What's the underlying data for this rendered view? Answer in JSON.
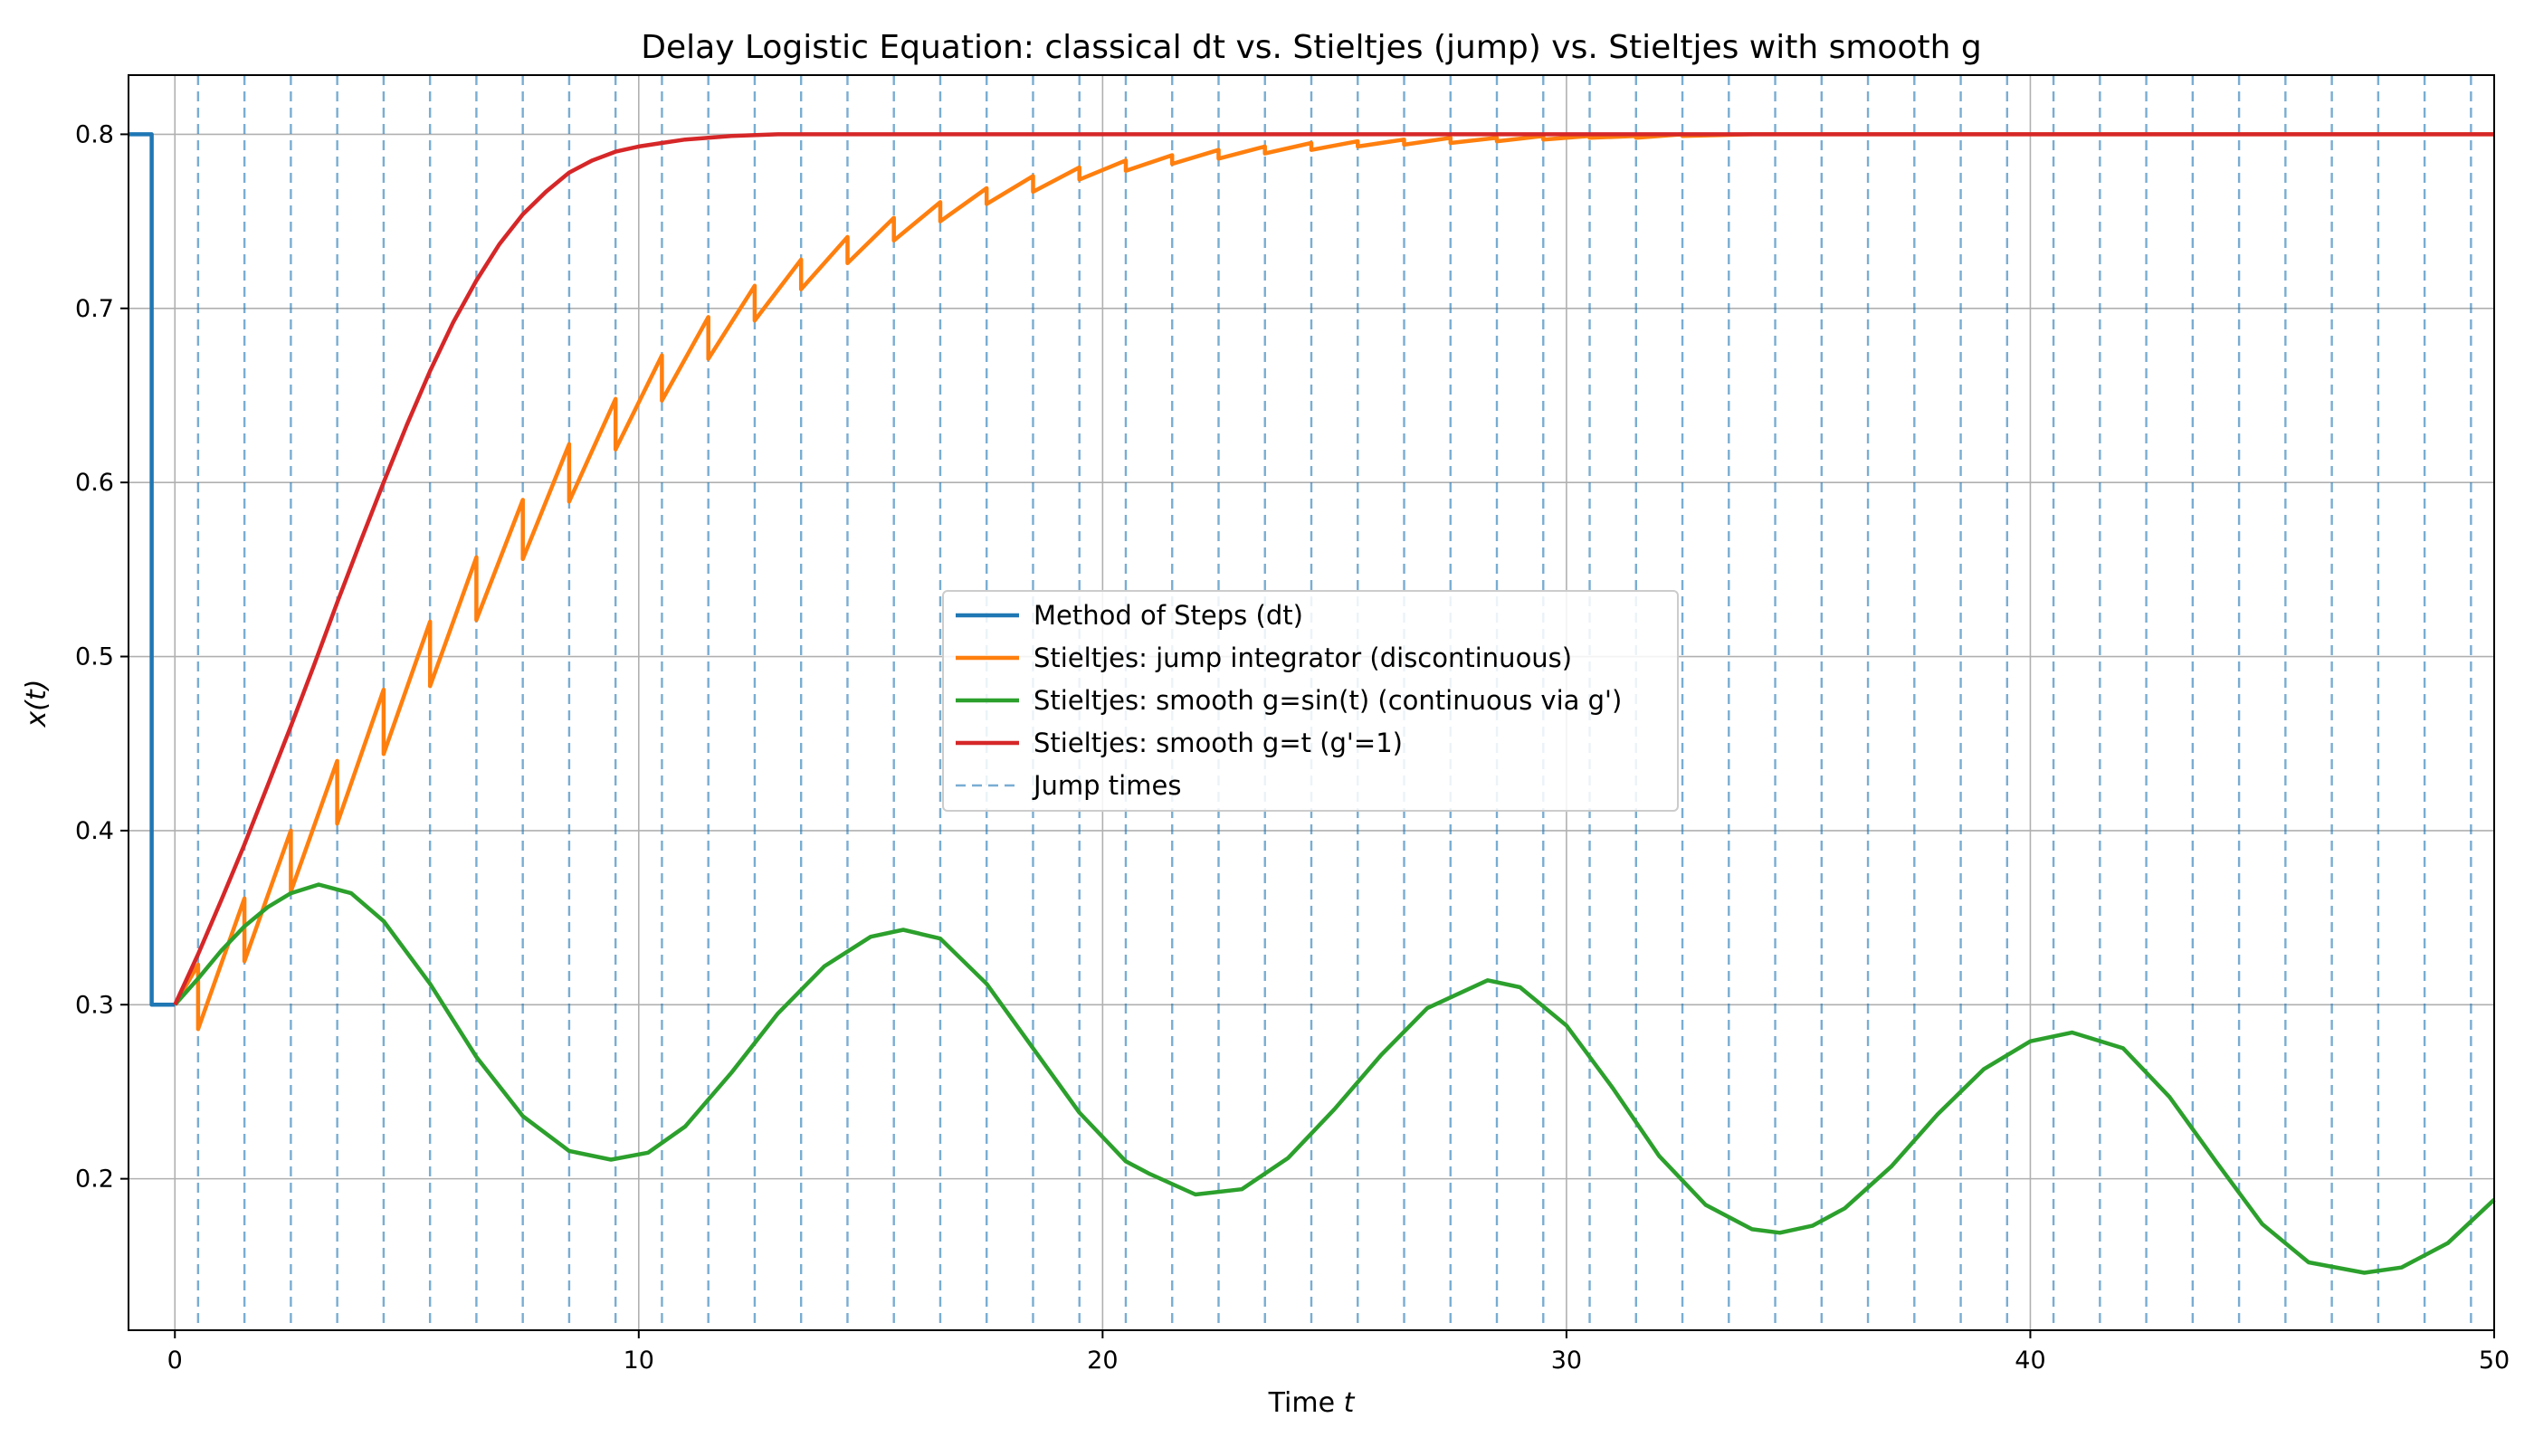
{
  "chart_data": {
    "type": "line",
    "title": "Delay Logistic Equation: classical dt vs. Stieltjes (jump) vs. Stieltjes with smooth g",
    "xlabel_text": "Time ",
    "xlabel_var": "t",
    "ylabel": "x(t)",
    "xlim": [
      -1,
      50
    ],
    "ylim": [
      0.113,
      0.834
    ],
    "grid": true,
    "legend_position": "center",
    "x_ticks": [
      0,
      10,
      20,
      30,
      40,
      50
    ],
    "x_tick_labels": [
      "0",
      "10",
      "20",
      "30",
      "40",
      "50"
    ],
    "y_ticks": [
      0.2,
      0.3,
      0.4,
      0.5,
      0.6,
      0.7,
      0.8
    ],
    "y_tick_labels": [
      "0.2",
      "0.3",
      "0.4",
      "0.5",
      "0.6",
      "0.7",
      "0.8"
    ],
    "jump_times": [
      0.5,
      1.5,
      2.5,
      3.5,
      4.5,
      5.5,
      6.5,
      7.5,
      8.5,
      9.5,
      10.5,
      11.5,
      12.5,
      13.5,
      14.5,
      15.5,
      16.5,
      17.5,
      18.5,
      19.5,
      20.5,
      21.5,
      22.5,
      23.5,
      24.5,
      25.5,
      26.5,
      27.5,
      28.5,
      29.5,
      30.5,
      31.5,
      32.5,
      33.5,
      34.5,
      35.5,
      36.5,
      37.5,
      38.5,
      39.5,
      40.5,
      41.5,
      42.5,
      43.5,
      44.5,
      45.5,
      46.5,
      47.5,
      48.5,
      49.5
    ],
    "series": [
      {
        "name": "Method of Steps (dt)",
        "color": "#1f77b4",
        "x": [
          -1.0,
          -0.5,
          -0.5,
          0.0
        ],
        "y": [
          0.8,
          0.8,
          0.3,
          0.3
        ]
      },
      {
        "name": "Stieltjes: jump integrator (discontinuous)",
        "color": "#ff7f0e",
        "x": [
          0.0,
          0.5,
          0.5,
          1.5,
          1.5,
          2.5,
          2.5,
          3.5,
          3.5,
          4.5,
          4.5,
          5.5,
          5.5,
          6.5,
          6.5,
          7.5,
          7.5,
          8.5,
          8.5,
          9.5,
          9.5,
          10.5,
          10.5,
          11.5,
          11.5,
          12.5,
          12.5,
          13.5,
          13.5,
          14.5,
          14.5,
          15.5,
          15.5,
          16.5,
          16.5,
          17.5,
          17.5,
          18.5,
          18.5,
          19.5,
          19.5,
          20.5,
          20.5,
          21.5,
          21.5,
          22.5,
          22.5,
          23.5,
          23.5,
          24.5,
          24.5,
          25.5,
          25.5,
          26.5,
          26.5,
          27.5,
          27.5,
          28.5,
          28.5,
          29.5,
          29.5,
          30.5,
          30.5,
          31.5,
          31.5,
          32.5,
          32.5,
          34.0,
          36.0,
          38.0,
          41.0,
          45.0,
          50.0
        ],
        "y": [
          0.3,
          0.323,
          0.286,
          0.361,
          0.325,
          0.4,
          0.365,
          0.44,
          0.404,
          0.481,
          0.444,
          0.52,
          0.483,
          0.557,
          0.521,
          0.59,
          0.556,
          0.622,
          0.589,
          0.648,
          0.619,
          0.673,
          0.647,
          0.695,
          0.671,
          0.713,
          0.693,
          0.728,
          0.711,
          0.741,
          0.726,
          0.752,
          0.739,
          0.761,
          0.75,
          0.769,
          0.76,
          0.776,
          0.767,
          0.781,
          0.774,
          0.785,
          0.779,
          0.788,
          0.783,
          0.791,
          0.786,
          0.793,
          0.789,
          0.795,
          0.791,
          0.796,
          0.793,
          0.797,
          0.794,
          0.798,
          0.795,
          0.798,
          0.796,
          0.799,
          0.797,
          0.799,
          0.798,
          0.799,
          0.798,
          0.8,
          0.799,
          0.8,
          0.8,
          0.8,
          0.8,
          0.8,
          0.8
        ]
      },
      {
        "name": "Stieltjes: smooth g=sin(t) (continuous via g')",
        "color": "#2ca02c",
        "x": [
          0.0,
          0.5,
          1.0,
          1.5,
          2.0,
          2.5,
          3.1,
          3.8,
          4.5,
          5.5,
          6.5,
          7.5,
          8.5,
          9.4,
          10.2,
          11.0,
          12.0,
          13.0,
          14.0,
          15.0,
          15.7,
          16.5,
          17.5,
          18.5,
          19.5,
          20.5,
          21.0,
          22.0,
          23.0,
          24.0,
          25.0,
          26.0,
          27.0,
          28.3,
          29.0,
          30.0,
          31.0,
          32.0,
          33.0,
          34.0,
          34.6,
          35.3,
          36.0,
          37.0,
          38.0,
          39.0,
          40.0,
          40.9,
          42.0,
          43.0,
          44.0,
          45.0,
          46.0,
          47.2,
          48.0,
          49.0,
          50.0
        ],
        "y": [
          0.3,
          0.315,
          0.331,
          0.345,
          0.356,
          0.364,
          0.369,
          0.364,
          0.348,
          0.312,
          0.27,
          0.236,
          0.216,
          0.211,
          0.215,
          0.23,
          0.261,
          0.295,
          0.322,
          0.339,
          0.343,
          0.338,
          0.312,
          0.275,
          0.238,
          0.21,
          0.203,
          0.191,
          0.194,
          0.212,
          0.24,
          0.271,
          0.298,
          0.314,
          0.31,
          0.288,
          0.252,
          0.213,
          0.185,
          0.171,
          0.169,
          0.173,
          0.183,
          0.207,
          0.237,
          0.263,
          0.279,
          0.284,
          0.275,
          0.247,
          0.21,
          0.174,
          0.152,
          0.146,
          0.149,
          0.163,
          0.188
        ]
      },
      {
        "name": "Stieltjes: smooth g=t (g'=1)",
        "color": "#d62728",
        "x": [
          0.0,
          0.5,
          1.0,
          1.5,
          2.0,
          2.5,
          3.0,
          3.5,
          4.0,
          4.5,
          5.0,
          5.5,
          6.0,
          6.5,
          7.0,
          7.5,
          8.0,
          8.5,
          9.0,
          9.5,
          10.0,
          10.5,
          11.0,
          12.0,
          13.0,
          14.0,
          16.0,
          20.0,
          30.0,
          40.0,
          50.0
        ],
        "y": [
          0.3,
          0.329,
          0.36,
          0.392,
          0.426,
          0.46,
          0.495,
          0.531,
          0.566,
          0.6,
          0.633,
          0.664,
          0.692,
          0.716,
          0.737,
          0.754,
          0.767,
          0.778,
          0.785,
          0.79,
          0.793,
          0.795,
          0.797,
          0.799,
          0.8,
          0.8,
          0.8,
          0.8,
          0.8,
          0.8,
          0.8
        ]
      }
    ],
    "legend_entries": [
      {
        "label": "Method of Steps (dt)",
        "color": "#1f77b4",
        "style": "solid"
      },
      {
        "label": "Stieltjes: jump integrator (discontinuous)",
        "color": "#ff7f0e",
        "style": "solid"
      },
      {
        "label": "Stieltjes: smooth g=sin(t) (continuous via g')",
        "color": "#2ca02c",
        "style": "solid"
      },
      {
        "label": "Stieltjes: smooth g=t (g'=1)",
        "color": "#d62728",
        "style": "solid"
      },
      {
        "label": "Jump times",
        "color": "#1f77b4",
        "style": "dashed"
      }
    ]
  }
}
